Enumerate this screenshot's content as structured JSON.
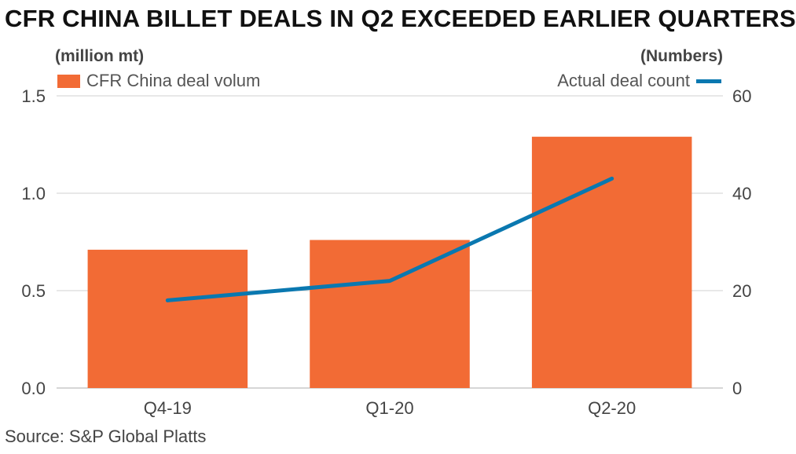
{
  "title": "CFR CHINA BILLET DEALS IN Q2 EXCEEDED EARLIER QUARTERS",
  "source": "Source: S&P Global Platts",
  "colors": {
    "bar": "#f26b35",
    "line": "#0a78b0",
    "grid": "#d9d9d9"
  },
  "chart_data": {
    "type": "bar",
    "categories": [
      "Q4-19",
      "Q1-20",
      "Q2-20"
    ],
    "series": [
      {
        "name": "CFR China deal volum",
        "type": "bar",
        "axis": "left",
        "values": [
          0.71,
          0.76,
          1.29
        ]
      },
      {
        "name": "Actual deal count",
        "type": "line",
        "axis": "right",
        "values": [
          18,
          22,
          43
        ]
      }
    ],
    "left_axis": {
      "label": "(million mt)",
      "ylim": [
        0,
        1.5
      ],
      "ticks": [
        "0.0",
        "0.5",
        "1.0",
        "1.5"
      ]
    },
    "right_axis": {
      "label": "(Numbers)",
      "ylim": [
        0,
        60
      ],
      "ticks": [
        "0",
        "20",
        "40",
        "60"
      ]
    },
    "grid": true,
    "legend": {
      "left": "CFR China deal volum",
      "right": "Actual deal count"
    }
  }
}
